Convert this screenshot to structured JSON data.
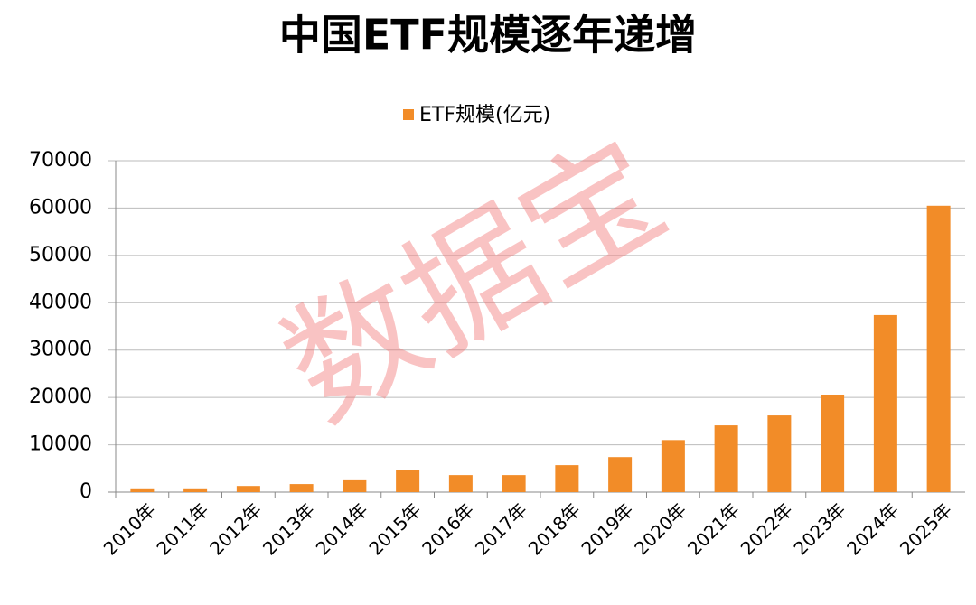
{
  "chart_data": {
    "type": "bar",
    "title": "中国ETF规模逐年递增",
    "watermark": "数据宝",
    "categories": [
      "2010年",
      "2011年",
      "2012年",
      "2013年",
      "2014年",
      "2015年",
      "2016年",
      "2017年",
      "2018年",
      "2019年",
      "2020年",
      "2021年",
      "2022年",
      "2023年",
      "2024年",
      "2025年"
    ],
    "series": [
      {
        "name": "ETF规模(亿元)",
        "color": "#f28c28",
        "values": [
          800,
          800,
          1300,
          1700,
          2500,
          4600,
          3600,
          3600,
          5700,
          7400,
          11000,
          14100,
          16200,
          20600,
          37400,
          60500
        ]
      }
    ],
    "ylim": [
      0,
      70000
    ],
    "yticks": [
      0,
      10000,
      20000,
      30000,
      40000,
      50000,
      60000,
      70000
    ],
    "grid": true,
    "legend": "top"
  }
}
